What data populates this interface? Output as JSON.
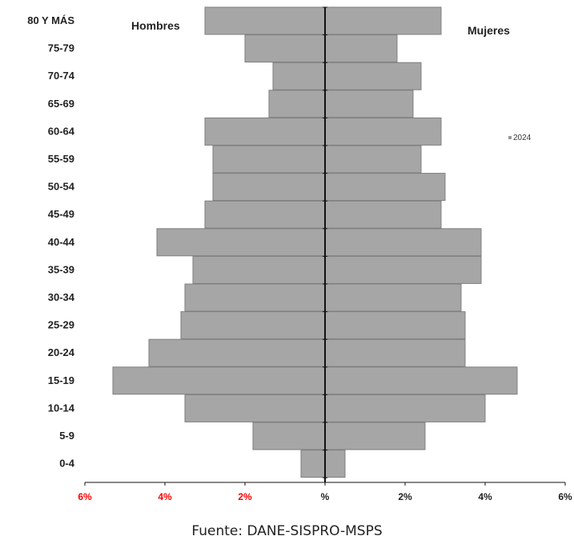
{
  "chart_data": {
    "type": "bar",
    "orientation": "horizontal",
    "title": "",
    "categories": [
      "80 Y MÁS",
      "75-79",
      "70-74",
      "65-69",
      "60-64",
      "55-59",
      "50-54",
      "45-49",
      "40-44",
      "35-39",
      "30-34",
      "25-29",
      "20-24",
      "15-19",
      "10-14",
      "5-9",
      "0-4"
    ],
    "series": [
      {
        "name": "Hombres",
        "side": "left",
        "values": [
          3.0,
          2.0,
          1.3,
          1.4,
          3.0,
          2.8,
          2.8,
          3.0,
          4.2,
          3.3,
          3.5,
          3.6,
          4.4,
          5.3,
          3.5,
          1.8,
          0.6
        ]
      },
      {
        "name": "Mujeres",
        "side": "right",
        "values": [
          2.9,
          1.8,
          2.4,
          2.2,
          2.9,
          2.4,
          3.0,
          2.9,
          3.9,
          3.9,
          3.4,
          3.5,
          3.5,
          4.8,
          4.0,
          2.5,
          0.5
        ]
      }
    ],
    "xlim": [
      -6,
      6
    ],
    "xticks": [
      {
        "value": -6,
        "label": "6%",
        "color": "#ff0000"
      },
      {
        "value": -4,
        "label": "4%",
        "color": "#ff0000"
      },
      {
        "value": -2,
        "label": "2%",
        "color": "#ff0000"
      },
      {
        "value": 0,
        "label": "%",
        "color": "#222222"
      },
      {
        "value": 2,
        "label": "2%",
        "color": "#222222"
      },
      {
        "value": 4,
        "label": "4%",
        "color": "#222222"
      },
      {
        "value": 6,
        "label": "6%",
        "color": "#222222"
      }
    ],
    "legend": {
      "label": "2024",
      "position": "right"
    },
    "bar_color": "#a6a6a6",
    "bar_edge_color": "#7f7f7f",
    "grid": false
  },
  "source": "Fuente: DANE-SISPRO-MSPS"
}
